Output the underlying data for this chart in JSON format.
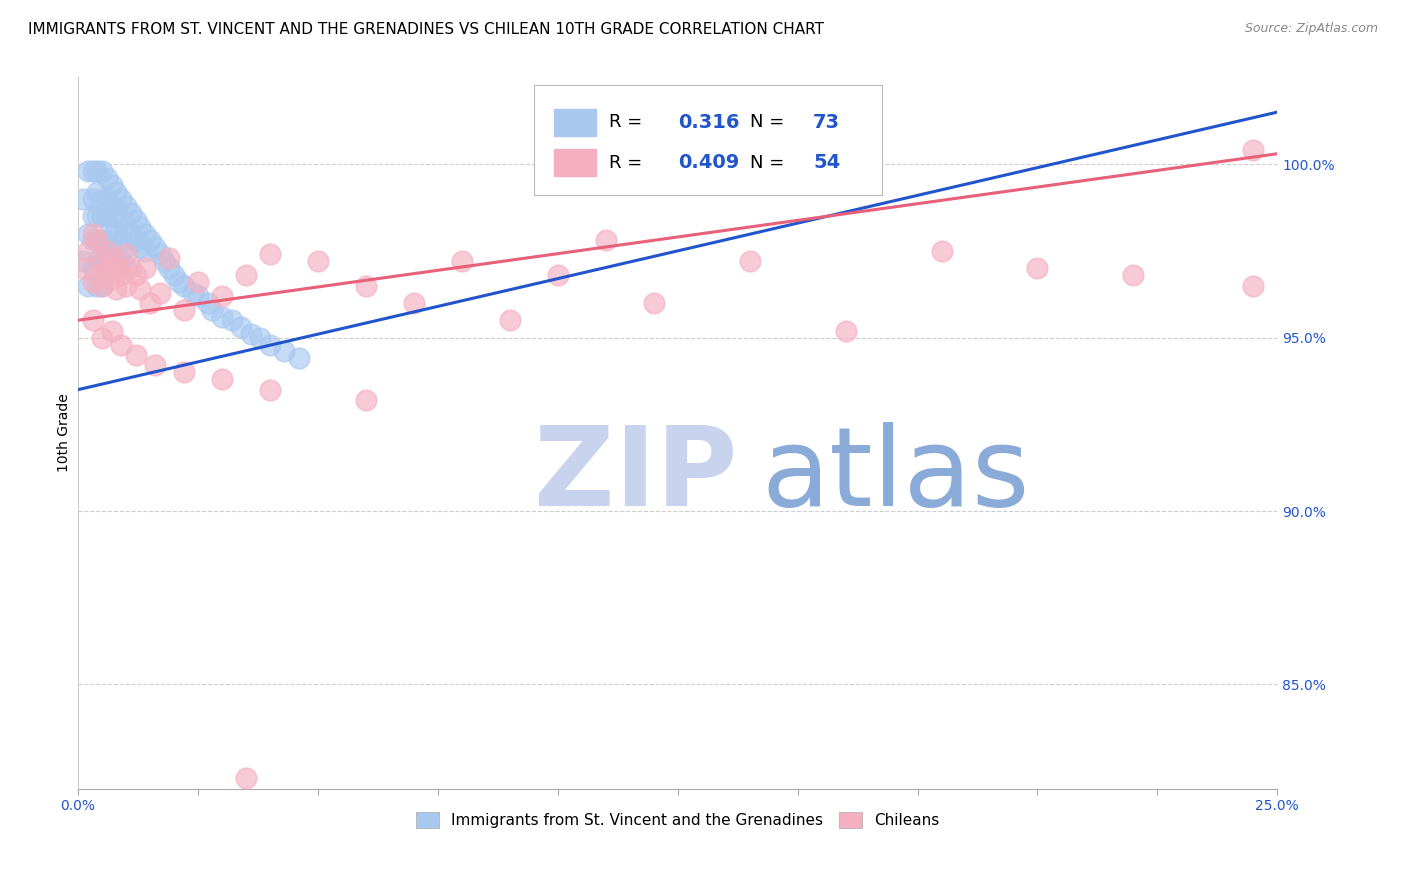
{
  "title": "IMMIGRANTS FROM ST. VINCENT AND THE GRENADINES VS CHILEAN 10TH GRADE CORRELATION CHART",
  "source": "Source: ZipAtlas.com",
  "ylabel": "10th Grade",
  "yaxis_labels": [
    "100.0%",
    "95.0%",
    "90.0%",
    "85.0%"
  ],
  "yaxis_values": [
    1.0,
    0.95,
    0.9,
    0.85
  ],
  "xlim": [
    0.0,
    0.25
  ],
  "ylim": [
    0.82,
    1.025
  ],
  "legend_r_blue": "0.316",
  "legend_n_blue": "73",
  "legend_r_pink": "0.409",
  "legend_n_pink": "54",
  "blue_color": "#A8C8F0",
  "pink_color": "#F4B0C0",
  "blue_line_color": "#2255CC",
  "pink_line_color": "#E8607A",
  "watermark_zip_color": "#C8D4EE",
  "watermark_atlas_color": "#8AAAD8",
  "title_fontsize": 11,
  "blue_x": [
    0.001,
    0.001,
    0.002,
    0.002,
    0.002,
    0.003,
    0.003,
    0.003,
    0.003,
    0.003,
    0.004,
    0.004,
    0.004,
    0.004,
    0.004,
    0.004,
    0.005,
    0.005,
    0.005,
    0.005,
    0.005,
    0.005,
    0.006,
    0.006,
    0.006,
    0.006,
    0.006,
    0.007,
    0.007,
    0.007,
    0.007,
    0.007,
    0.008,
    0.008,
    0.008,
    0.008,
    0.008,
    0.009,
    0.009,
    0.009,
    0.009,
    0.01,
    0.01,
    0.01,
    0.01,
    0.011,
    0.011,
    0.012,
    0.012,
    0.013,
    0.013,
    0.014,
    0.014,
    0.015,
    0.016,
    0.017,
    0.018,
    0.019,
    0.02,
    0.021,
    0.022,
    0.024,
    0.025,
    0.027,
    0.028,
    0.03,
    0.032,
    0.034,
    0.036,
    0.038,
    0.04,
    0.043,
    0.046
  ],
  "blue_y": [
    0.972,
    0.99,
    0.998,
    0.98,
    0.965,
    0.998,
    0.99,
    0.985,
    0.978,
    0.97,
    0.998,
    0.992,
    0.985,
    0.978,
    0.972,
    0.965,
    0.998,
    0.99,
    0.985,
    0.978,
    0.972,
    0.965,
    0.996,
    0.99,
    0.985,
    0.978,
    0.972,
    0.994,
    0.988,
    0.982,
    0.976,
    0.97,
    0.992,
    0.987,
    0.981,
    0.975,
    0.97,
    0.99,
    0.984,
    0.978,
    0.972,
    0.988,
    0.982,
    0.976,
    0.97,
    0.986,
    0.98,
    0.984,
    0.978,
    0.982,
    0.976,
    0.98,
    0.975,
    0.978,
    0.976,
    0.974,
    0.972,
    0.97,
    0.968,
    0.966,
    0.965,
    0.963,
    0.962,
    0.96,
    0.958,
    0.956,
    0.955,
    0.953,
    0.951,
    0.95,
    0.948,
    0.946,
    0.944
  ],
  "pink_x": [
    0.001,
    0.002,
    0.003,
    0.003,
    0.004,
    0.004,
    0.005,
    0.005,
    0.006,
    0.006,
    0.007,
    0.007,
    0.008,
    0.008,
    0.009,
    0.01,
    0.01,
    0.011,
    0.012,
    0.013,
    0.014,
    0.015,
    0.017,
    0.019,
    0.022,
    0.025,
    0.03,
    0.035,
    0.04,
    0.05,
    0.06,
    0.07,
    0.08,
    0.09,
    0.1,
    0.11,
    0.12,
    0.14,
    0.16,
    0.18,
    0.2,
    0.22,
    0.245,
    0.245,
    0.003,
    0.005,
    0.007,
    0.009,
    0.012,
    0.016,
    0.022,
    0.03,
    0.04,
    0.06
  ],
  "pink_y": [
    0.97,
    0.975,
    0.966,
    0.98,
    0.968,
    0.978,
    0.972,
    0.965,
    0.97,
    0.975,
    0.967,
    0.973,
    0.97,
    0.964,
    0.968,
    0.974,
    0.965,
    0.97,
    0.968,
    0.964,
    0.97,
    0.96,
    0.963,
    0.973,
    0.958,
    0.966,
    0.962,
    0.968,
    0.974,
    0.972,
    0.965,
    0.96,
    0.972,
    0.955,
    0.968,
    0.978,
    0.96,
    0.972,
    0.952,
    0.975,
    0.97,
    0.968,
    1.004,
    0.965,
    0.955,
    0.95,
    0.952,
    0.948,
    0.945,
    0.942,
    0.94,
    0.938,
    0.935,
    0.932
  ],
  "pink_outlier_x": [
    0.035
  ],
  "pink_outlier_y": [
    0.823
  ]
}
